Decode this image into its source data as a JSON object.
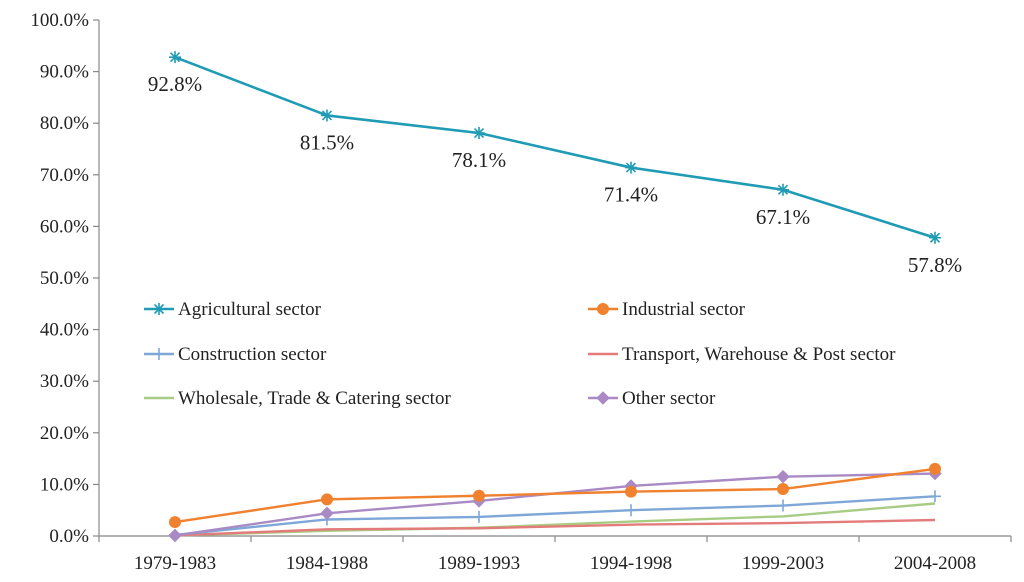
{
  "chart_data": {
    "type": "line",
    "title": "",
    "xlabel": "",
    "ylabel": "",
    "categories": [
      "1979-1983",
      "1984-1988",
      "1989-1993",
      "1994-1998",
      "1999-2003",
      "2004-2008"
    ],
    "ylim": [
      0,
      100
    ],
    "y_ticks": [
      "0.0%",
      "10.0%",
      "20.0%",
      "30.0%",
      "40.0%",
      "50.0%",
      "60.0%",
      "70.0%",
      "80.0%",
      "90.0%",
      "100.0%"
    ],
    "grid": false,
    "legend": "inside-middle, two columns",
    "series": [
      {
        "name": "Agricultural sector",
        "values": [
          92.8,
          81.5,
          78.1,
          71.4,
          67.1,
          57.8
        ],
        "labels": [
          "92.8%",
          "81.5%",
          "78.1%",
          "71.4%",
          "67.1%",
          "57.8%"
        ],
        "color": "#1f9bb5",
        "marker": "asterisk"
      },
      {
        "name": "Industrial sector",
        "values": [
          2.7,
          7.1,
          7.8,
          8.6,
          9.1,
          13.0
        ],
        "color": "#f0812f",
        "marker": "circle"
      },
      {
        "name": "Construction sector",
        "values": [
          0.2,
          3.2,
          3.7,
          5.0,
          5.9,
          7.7
        ],
        "color": "#7ea7d8",
        "marker": "plus"
      },
      {
        "name": "Transport, Warehouse & Post sector",
        "values": [
          0.1,
          1.3,
          1.5,
          2.2,
          2.5,
          3.1
        ],
        "color": "#e47b7b",
        "marker": "none"
      },
      {
        "name": "Wholesale, Trade & Catering sector",
        "values": [
          0.1,
          1.0,
          1.6,
          2.8,
          3.8,
          6.3
        ],
        "color": "#a8cc84",
        "marker": "none"
      },
      {
        "name": "Other sector",
        "values": [
          0.1,
          4.4,
          6.8,
          9.7,
          11.5,
          12.1
        ],
        "color": "#a98ac4",
        "marker": "diamond"
      }
    ]
  }
}
